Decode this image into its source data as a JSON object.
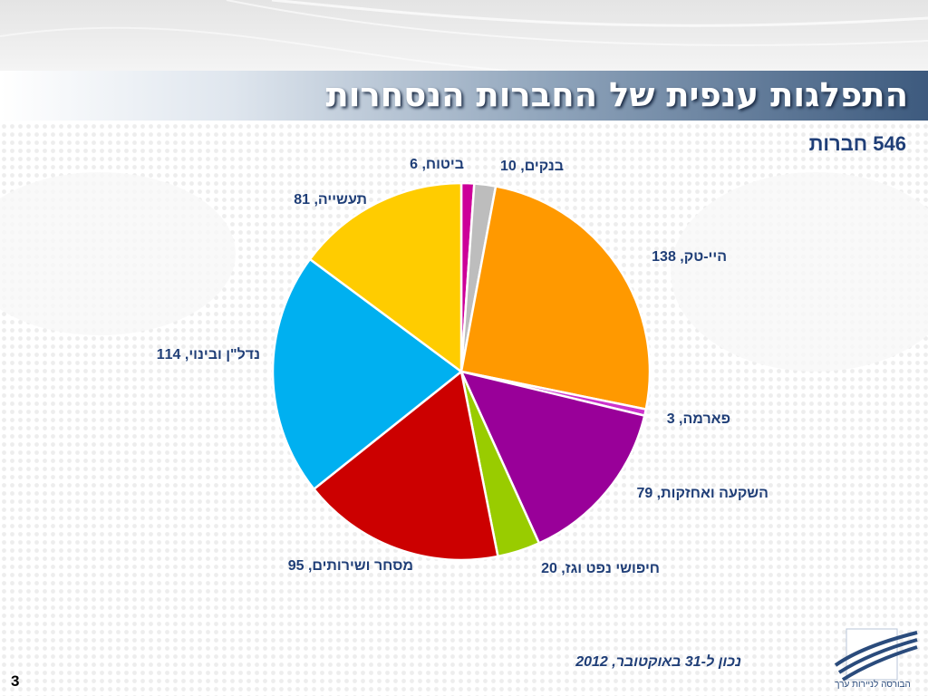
{
  "slide": {
    "title": "התפלגות ענפית של החברות הנסחרות",
    "total": "546 חברות",
    "footnote": "נכון ל-31 באוקטובר, 2012",
    "page_number": "3",
    "logo_text": "הבורסה לניירות ערך"
  },
  "chart_data": {
    "type": "pie",
    "title": "",
    "slices": [
      {
        "label": "ביטוח, 6",
        "value": 6,
        "color": "#cc0099"
      },
      {
        "label": "בנקים, 10",
        "value": 10,
        "color": "#bdbdbd"
      },
      {
        "label": "היי-טק, 138",
        "value": 138,
        "color": "#ff9900"
      },
      {
        "label": "פארמה, 3",
        "value": 3,
        "color": "#cc33cc"
      },
      {
        "label": "השקעה ואחזקות, 79",
        "value": 79,
        "color": "#990099"
      },
      {
        "label": "חיפושי נפט וגז, 20",
        "value": 20,
        "color": "#99cc00"
      },
      {
        "label": "מסחר ושירותים, 95",
        "value": 95,
        "color": "#cc0000"
      },
      {
        "label": "נדל\"ן ובינוי, 114",
        "value": 114,
        "color": "#00b0f0"
      },
      {
        "label": "תעשייה, 81",
        "value": 81,
        "color": "#ffcc00"
      }
    ]
  }
}
